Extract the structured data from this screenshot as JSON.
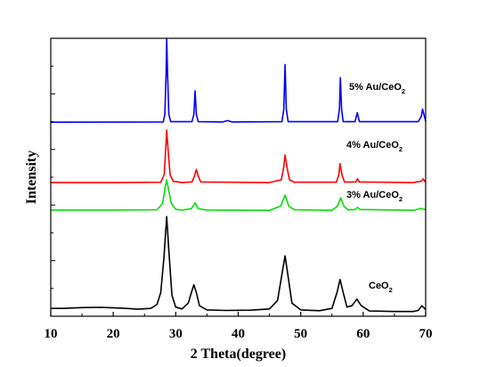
{
  "chart_data": {
    "type": "line",
    "title": "",
    "xlabel": "2 Theta(degree)",
    "ylabel": "Intensity",
    "xlim": [
      10,
      70
    ],
    "xticks": [
      10,
      20,
      30,
      40,
      50,
      60,
      70
    ],
    "y_tick_labels": false,
    "grid": false,
    "legend": "inline labels at right",
    "series": [
      {
        "name": "CeO2",
        "label_main": "CeO",
        "label_sub": "2",
        "color": "#000000",
        "points": [
          [
            10,
            0.03
          ],
          [
            12,
            0.03
          ],
          [
            15,
            0.033
          ],
          [
            18,
            0.034
          ],
          [
            20,
            0.032
          ],
          [
            22,
            0.03
          ],
          [
            24,
            0.027
          ],
          [
            26,
            0.03
          ],
          [
            27,
            0.045
          ],
          [
            27.6,
            0.09
          ],
          [
            28.1,
            0.22
          ],
          [
            28.55,
            0.38
          ],
          [
            28.9,
            0.25
          ],
          [
            29.4,
            0.08
          ],
          [
            30,
            0.035
          ],
          [
            31,
            0.028
          ],
          [
            32,
            0.05
          ],
          [
            32.5,
            0.09
          ],
          [
            32.9,
            0.12
          ],
          [
            33.3,
            0.09
          ],
          [
            33.8,
            0.04
          ],
          [
            35,
            0.024
          ],
          [
            38,
            0.022
          ],
          [
            42,
            0.023
          ],
          [
            45,
            0.028
          ],
          [
            46.3,
            0.06
          ],
          [
            47,
            0.16
          ],
          [
            47.5,
            0.23
          ],
          [
            48,
            0.15
          ],
          [
            48.6,
            0.05
          ],
          [
            50,
            0.024
          ],
          [
            53,
            0.021
          ],
          [
            55,
            0.03
          ],
          [
            55.8,
            0.09
          ],
          [
            56.3,
            0.14
          ],
          [
            56.8,
            0.09
          ],
          [
            57.4,
            0.035
          ],
          [
            58.2,
            0.04
          ],
          [
            59,
            0.065
          ],
          [
            59.7,
            0.04
          ],
          [
            61,
            0.02
          ],
          [
            65,
            0.018
          ],
          [
            68,
            0.018
          ],
          [
            68.8,
            0.022
          ],
          [
            69.4,
            0.04
          ],
          [
            70,
            0.025
          ]
        ]
      },
      {
        "name": "3% Au/CeO2",
        "label_main": "3% Au/CeO",
        "label_sub": "2",
        "color": "#00e000",
        "points": [
          [
            10,
            0.405
          ],
          [
            20,
            0.405
          ],
          [
            27,
            0.406
          ],
          [
            27.9,
            0.43
          ],
          [
            28.3,
            0.49
          ],
          [
            28.55,
            0.52
          ],
          [
            28.8,
            0.49
          ],
          [
            29.3,
            0.43
          ],
          [
            30,
            0.408
          ],
          [
            31,
            0.405
          ],
          [
            32.5,
            0.41
          ],
          [
            33.1,
            0.432
          ],
          [
            33.6,
            0.41
          ],
          [
            35,
            0.405
          ],
          [
            45,
            0.404
          ],
          [
            46.8,
            0.42
          ],
          [
            47.5,
            0.462
          ],
          [
            48.1,
            0.42
          ],
          [
            49,
            0.406
          ],
          [
            55,
            0.404
          ],
          [
            55.9,
            0.42
          ],
          [
            56.4,
            0.452
          ],
          [
            56.9,
            0.42
          ],
          [
            57.6,
            0.405
          ],
          [
            58.7,
            0.407
          ],
          [
            59.1,
            0.415
          ],
          [
            59.5,
            0.407
          ],
          [
            68,
            0.404
          ],
          [
            69.3,
            0.411
          ],
          [
            70,
            0.406
          ]
        ]
      },
      {
        "name": "4% Au/CeO2",
        "label_main": "4% Au/CeO",
        "label_sub": "2",
        "color": "#ff0000",
        "points": [
          [
            10,
            0.51
          ],
          [
            20,
            0.51
          ],
          [
            27.6,
            0.511
          ],
          [
            28.15,
            0.54
          ],
          [
            28.4,
            0.64
          ],
          [
            28.55,
            0.71
          ],
          [
            28.75,
            0.64
          ],
          [
            29.1,
            0.54
          ],
          [
            29.6,
            0.515
          ],
          [
            31,
            0.51
          ],
          [
            32.6,
            0.512
          ],
          [
            33,
            0.535
          ],
          [
            33.3,
            0.56
          ],
          [
            33.6,
            0.535
          ],
          [
            34,
            0.512
          ],
          [
            45,
            0.51
          ],
          [
            46.9,
            0.52
          ],
          [
            47.3,
            0.57
          ],
          [
            47.5,
            0.615
          ],
          [
            47.8,
            0.57
          ],
          [
            48.2,
            0.52
          ],
          [
            49,
            0.511
          ],
          [
            55.7,
            0.511
          ],
          [
            56.1,
            0.54
          ],
          [
            56.3,
            0.582
          ],
          [
            56.6,
            0.54
          ],
          [
            57,
            0.512
          ],
          [
            58.8,
            0.512
          ],
          [
            59.1,
            0.524
          ],
          [
            59.4,
            0.512
          ],
          [
            68,
            0.51
          ],
          [
            69.3,
            0.515
          ],
          [
            69.6,
            0.524
          ],
          [
            70,
            0.51
          ]
        ]
      },
      {
        "name": "5% Au/CeO2",
        "label_main": "5% Au/CeO",
        "label_sub": "2",
        "color": "#0000ff",
        "points": [
          [
            10,
            0.74
          ],
          [
            28,
            0.741
          ],
          [
            28.25,
            0.77
          ],
          [
            28.45,
            0.92
          ],
          [
            28.55,
            1.06
          ],
          [
            28.7,
            0.92
          ],
          [
            28.9,
            0.77
          ],
          [
            29.2,
            0.742
          ],
          [
            32.6,
            0.742
          ],
          [
            32.9,
            0.77
          ],
          [
            33.1,
            0.86
          ],
          [
            33.3,
            0.77
          ],
          [
            33.6,
            0.742
          ],
          [
            37.5,
            0.741
          ],
          [
            38.3,
            0.746
          ],
          [
            39,
            0.741
          ],
          [
            47,
            0.742
          ],
          [
            47.3,
            0.79
          ],
          [
            47.5,
            0.96
          ],
          [
            47.7,
            0.79
          ],
          [
            48,
            0.742
          ],
          [
            55.9,
            0.742
          ],
          [
            56.2,
            0.79
          ],
          [
            56.35,
            0.91
          ],
          [
            56.55,
            0.79
          ],
          [
            56.8,
            0.742
          ],
          [
            58.7,
            0.742
          ],
          [
            59.05,
            0.776
          ],
          [
            59.4,
            0.742
          ],
          [
            68.8,
            0.742
          ],
          [
            69.3,
            0.762
          ],
          [
            69.5,
            0.79
          ],
          [
            69.8,
            0.762
          ],
          [
            70,
            0.744
          ]
        ]
      }
    ]
  }
}
